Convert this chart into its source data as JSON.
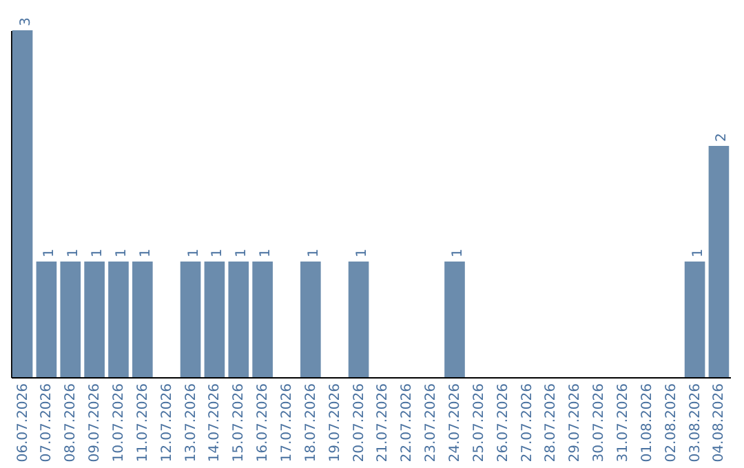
{
  "chart_data": {
    "type": "bar",
    "categories": [
      "06.07.2026",
      "07.07.2026",
      "08.07.2026",
      "09.07.2026",
      "10.07.2026",
      "11.07.2026",
      "12.07.2026",
      "13.07.2026",
      "14.07.2026",
      "15.07.2026",
      "16.07.2026",
      "17.07.2026",
      "18.07.2026",
      "19.07.2026",
      "20.07.2026",
      "21.07.2026",
      "22.07.2026",
      "23.07.2026",
      "24.07.2026",
      "25.07.2026",
      "26.07.2026",
      "27.07.2026",
      "28.07.2026",
      "29.07.2026",
      "30.07.2026",
      "31.07.2026",
      "01.08.2026",
      "02.08.2026",
      "03.08.2026",
      "04.08.2026"
    ],
    "values": [
      3,
      1,
      1,
      1,
      1,
      1,
      null,
      1,
      1,
      1,
      1,
      null,
      1,
      null,
      1,
      null,
      null,
      null,
      1,
      null,
      null,
      null,
      null,
      null,
      null,
      null,
      null,
      null,
      1,
      2
    ],
    "color": "#6b8cad",
    "data_labels": true
  }
}
